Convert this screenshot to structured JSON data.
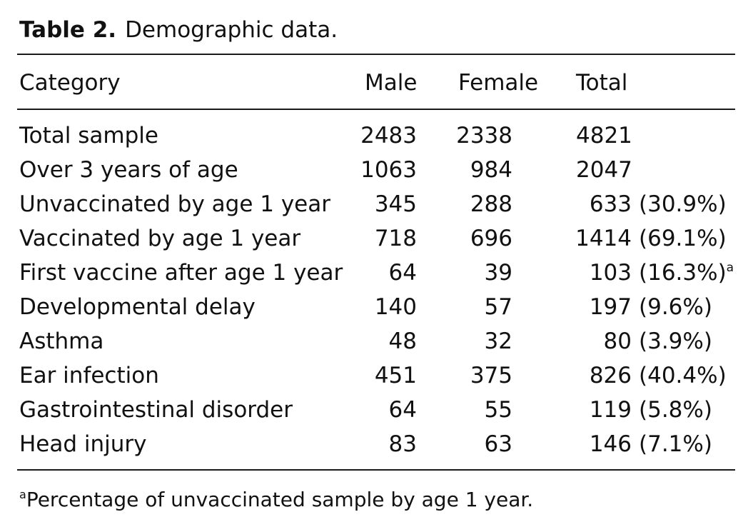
{
  "table": {
    "label": "Table 2.",
    "caption": "Demographic data.",
    "headers": {
      "category": "Category",
      "male": "Male",
      "female": "Female",
      "total": "Total"
    },
    "rows": [
      {
        "category": "Total sample",
        "male": "2483",
        "female": "2338",
        "total": "4821",
        "percent": ""
      },
      {
        "category": "Over 3 years of age",
        "male": "1063",
        "female": "984",
        "total": "2047",
        "percent": ""
      },
      {
        "category": "Unvaccinated by age 1 year",
        "male": "345",
        "female": "288",
        "total": "633",
        "percent": "(30.9%)"
      },
      {
        "category": "Vaccinated by age 1 year",
        "male": "718",
        "female": "696",
        "total": "1414",
        "percent": "(69.1%)"
      },
      {
        "category": "First vaccine after age 1 year",
        "male": "64",
        "female": "39",
        "total": "103",
        "percent": "(16.3%)",
        "footnote": "a"
      },
      {
        "category": "Developmental delay",
        "male": "140",
        "female": "57",
        "total": "197",
        "percent": "(9.6%)"
      },
      {
        "category": "Asthma",
        "male": "48",
        "female": "32",
        "total": "80",
        "percent": "(3.9%)"
      },
      {
        "category": "Ear infection",
        "male": "451",
        "female": "375",
        "total": "826",
        "percent": "(40.4%)"
      },
      {
        "category": "Gastrointestinal disorder",
        "male": "64",
        "female": "55",
        "total": "119",
        "percent": "(5.8%)"
      },
      {
        "category": "Head injury",
        "male": "83",
        "female": "63",
        "total": "146",
        "percent": "(7.1%)"
      }
    ],
    "footnote": {
      "marker": "a",
      "text": "Percentage of unvaccinated sample by age 1 year."
    }
  }
}
